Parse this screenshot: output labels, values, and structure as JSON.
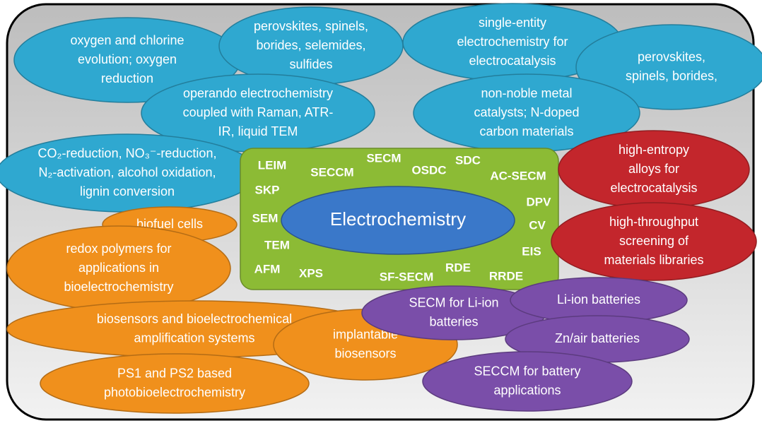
{
  "center": {
    "label": "Electrochemistry",
    "color": "#3a78c9"
  },
  "methods_box": {
    "color": "#8cbb35",
    "labels": [
      "LEIM",
      "SECCM",
      "SECM",
      "OSDC",
      "SDC",
      "AC-SECM",
      "SKP",
      "DPV",
      "SEM",
      "CV",
      "TEM",
      "EIS",
      "AFM",
      "XPS",
      "SF-SECM",
      "RDE",
      "RRDE"
    ]
  },
  "topics": [
    {
      "lines": [
        "oxygen and chlorine",
        "evolution; oxygen",
        "reduction"
      ],
      "color": "#2fa8d0"
    },
    {
      "lines": [
        "perovskites, spinels,",
        "borides, selemides,",
        "sulfides"
      ],
      "color": "#2fa8d0"
    },
    {
      "lines": [
        "single-entity",
        "electrochemistry for",
        "electrocatalysis"
      ],
      "color": "#2fa8d0"
    },
    {
      "lines": [
        "perovskites,",
        "spinels, borides,"
      ],
      "color": "#2fa8d0"
    },
    {
      "lines": [
        "operando electrochemistry",
        "coupled with Raman, ATR-",
        "IR, liquid TEM"
      ],
      "color": "#2fa8d0"
    },
    {
      "lines": [
        "non-noble metal",
        "catalysts; N-doped",
        "carbon materials"
      ],
      "color": "#2fa8d0"
    },
    {
      "lines": [
        "CO₂-reduction, NO₃⁻-reduction,",
        "N₂-activation, alcohol oxidation,",
        "lignin conversion"
      ],
      "color": "#2fa8d0"
    },
    {
      "lines": [
        "high-entropy",
        "alloys for",
        "electrocatalysis"
      ],
      "color": "#c3262c"
    },
    {
      "lines": [
        "high-throughput",
        "screening of",
        "materials libraries"
      ],
      "color": "#c3262c"
    },
    {
      "lines": [
        "biofuel cells"
      ],
      "color": "#f0901c"
    },
    {
      "lines": [
        "redox polymers for",
        "applications in",
        "bioelectrochemistry"
      ],
      "color": "#f0901c"
    },
    {
      "lines": [
        "biosensors and bioelectrochemical",
        "amplification systems"
      ],
      "color": "#f0901c"
    },
    {
      "lines": [
        "implantable",
        "biosensors"
      ],
      "color": "#f0901c"
    },
    {
      "lines": [
        "PS1 and PS2 based",
        "photobioelectrochemistry"
      ],
      "color": "#f0901c"
    },
    {
      "lines": [
        "SECM for Li-ion",
        "batteries"
      ],
      "color": "#7a4ea9"
    },
    {
      "lines": [
        "Li-ion batteries"
      ],
      "color": "#7a4ea9"
    },
    {
      "lines": [
        "Zn/air batteries"
      ],
      "color": "#7a4ea9"
    },
    {
      "lines": [
        "SECCM for battery",
        "applications"
      ],
      "color": "#7a4ea9"
    }
  ]
}
